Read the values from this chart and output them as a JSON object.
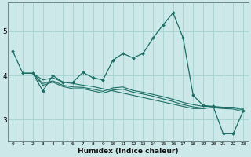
{
  "xlabel": "Humidex (Indice chaleur)",
  "background_color": "#cce8e8",
  "grid_color": "#aad4d4",
  "line_color": "#1a6e65",
  "xlim": [
    -0.5,
    23.5
  ],
  "ylim": [
    2.5,
    5.65
  ],
  "xticks": [
    0,
    1,
    2,
    3,
    4,
    5,
    6,
    7,
    8,
    9,
    10,
    11,
    12,
    13,
    14,
    15,
    16,
    17,
    18,
    19,
    20,
    21,
    22,
    23
  ],
  "yticks": [
    3,
    4,
    5
  ],
  "line1_x": [
    0,
    1,
    2,
    3,
    4,
    5,
    6,
    7,
    8,
    9,
    10,
    11,
    12,
    13,
    14,
    15,
    16,
    17,
    18,
    19,
    20,
    21,
    22,
    23
  ],
  "line1_y": [
    4.55,
    4.05,
    4.05,
    3.65,
    4.0,
    3.85,
    3.85,
    4.07,
    3.95,
    3.9,
    4.35,
    4.5,
    4.4,
    4.5,
    4.85,
    5.15,
    5.42,
    4.85,
    3.55,
    3.32,
    3.3,
    2.68,
    2.68,
    3.2
  ],
  "line2_x": [
    1,
    2,
    3,
    4,
    5,
    6,
    7,
    8,
    9,
    10,
    11,
    12,
    13,
    14,
    15,
    16,
    17,
    18,
    19,
    20,
    21,
    22,
    23
  ],
  "line2_y": [
    4.05,
    4.05,
    3.9,
    3.95,
    3.85,
    3.82,
    3.78,
    3.75,
    3.7,
    3.65,
    3.6,
    3.55,
    3.5,
    3.45,
    3.4,
    3.35,
    3.3,
    3.25,
    3.25,
    3.28,
    3.28,
    3.28,
    3.25
  ],
  "line3_x": [
    1,
    2,
    3,
    4,
    5,
    6,
    7,
    8,
    9,
    10,
    11,
    12,
    13,
    14,
    15,
    16,
    17,
    18,
    19,
    20,
    21,
    22,
    23
  ],
  "line3_y": [
    4.05,
    4.05,
    3.82,
    3.88,
    3.78,
    3.74,
    3.73,
    3.69,
    3.64,
    3.72,
    3.74,
    3.66,
    3.62,
    3.57,
    3.52,
    3.46,
    3.39,
    3.34,
    3.3,
    3.3,
    3.28,
    3.27,
    3.22
  ],
  "line4_x": [
    1,
    2,
    3,
    4,
    5,
    6,
    7,
    8,
    9,
    10,
    11,
    12,
    13,
    14,
    15,
    16,
    17,
    18,
    19,
    20,
    21,
    22,
    23
  ],
  "line4_y": [
    4.05,
    4.05,
    3.78,
    3.85,
    3.75,
    3.7,
    3.7,
    3.65,
    3.6,
    3.67,
    3.69,
    3.62,
    3.58,
    3.53,
    3.47,
    3.41,
    3.34,
    3.29,
    3.26,
    3.27,
    3.25,
    3.24,
    3.18
  ]
}
